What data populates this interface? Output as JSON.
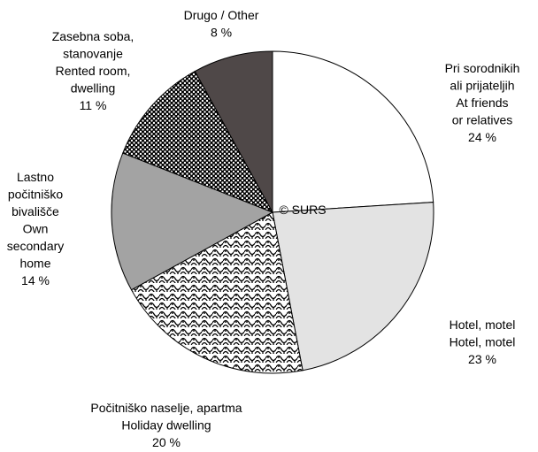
{
  "chart_data": {
    "type": "pie",
    "categories": [
      "Pri sorodnikih\nali prijateljih\nAt friends\nor relatives",
      "Hotel, motel\nHotel, motel",
      "Počitniško naselje, apartma\nHoliday dwelling",
      "Lastno\npočitniško\nbivališče\nOwn\nsecondary\nhome",
      "Zasebna soba,\nstanovanje\nRented room,\ndwelling",
      "Drugo / Other"
    ],
    "values": [
      24,
      23,
      20,
      14,
      11,
      8
    ],
    "value_labels": [
      "24 %",
      "23 %",
      "20 %",
      "14 %",
      "11 %",
      "8 %"
    ],
    "colors": [
      "#ffffff",
      "#e3e3e3",
      "url(#wave)",
      "#a3a3a3",
      "url(#dots)",
      "#4f4848"
    ],
    "annotation": "© SURS"
  }
}
